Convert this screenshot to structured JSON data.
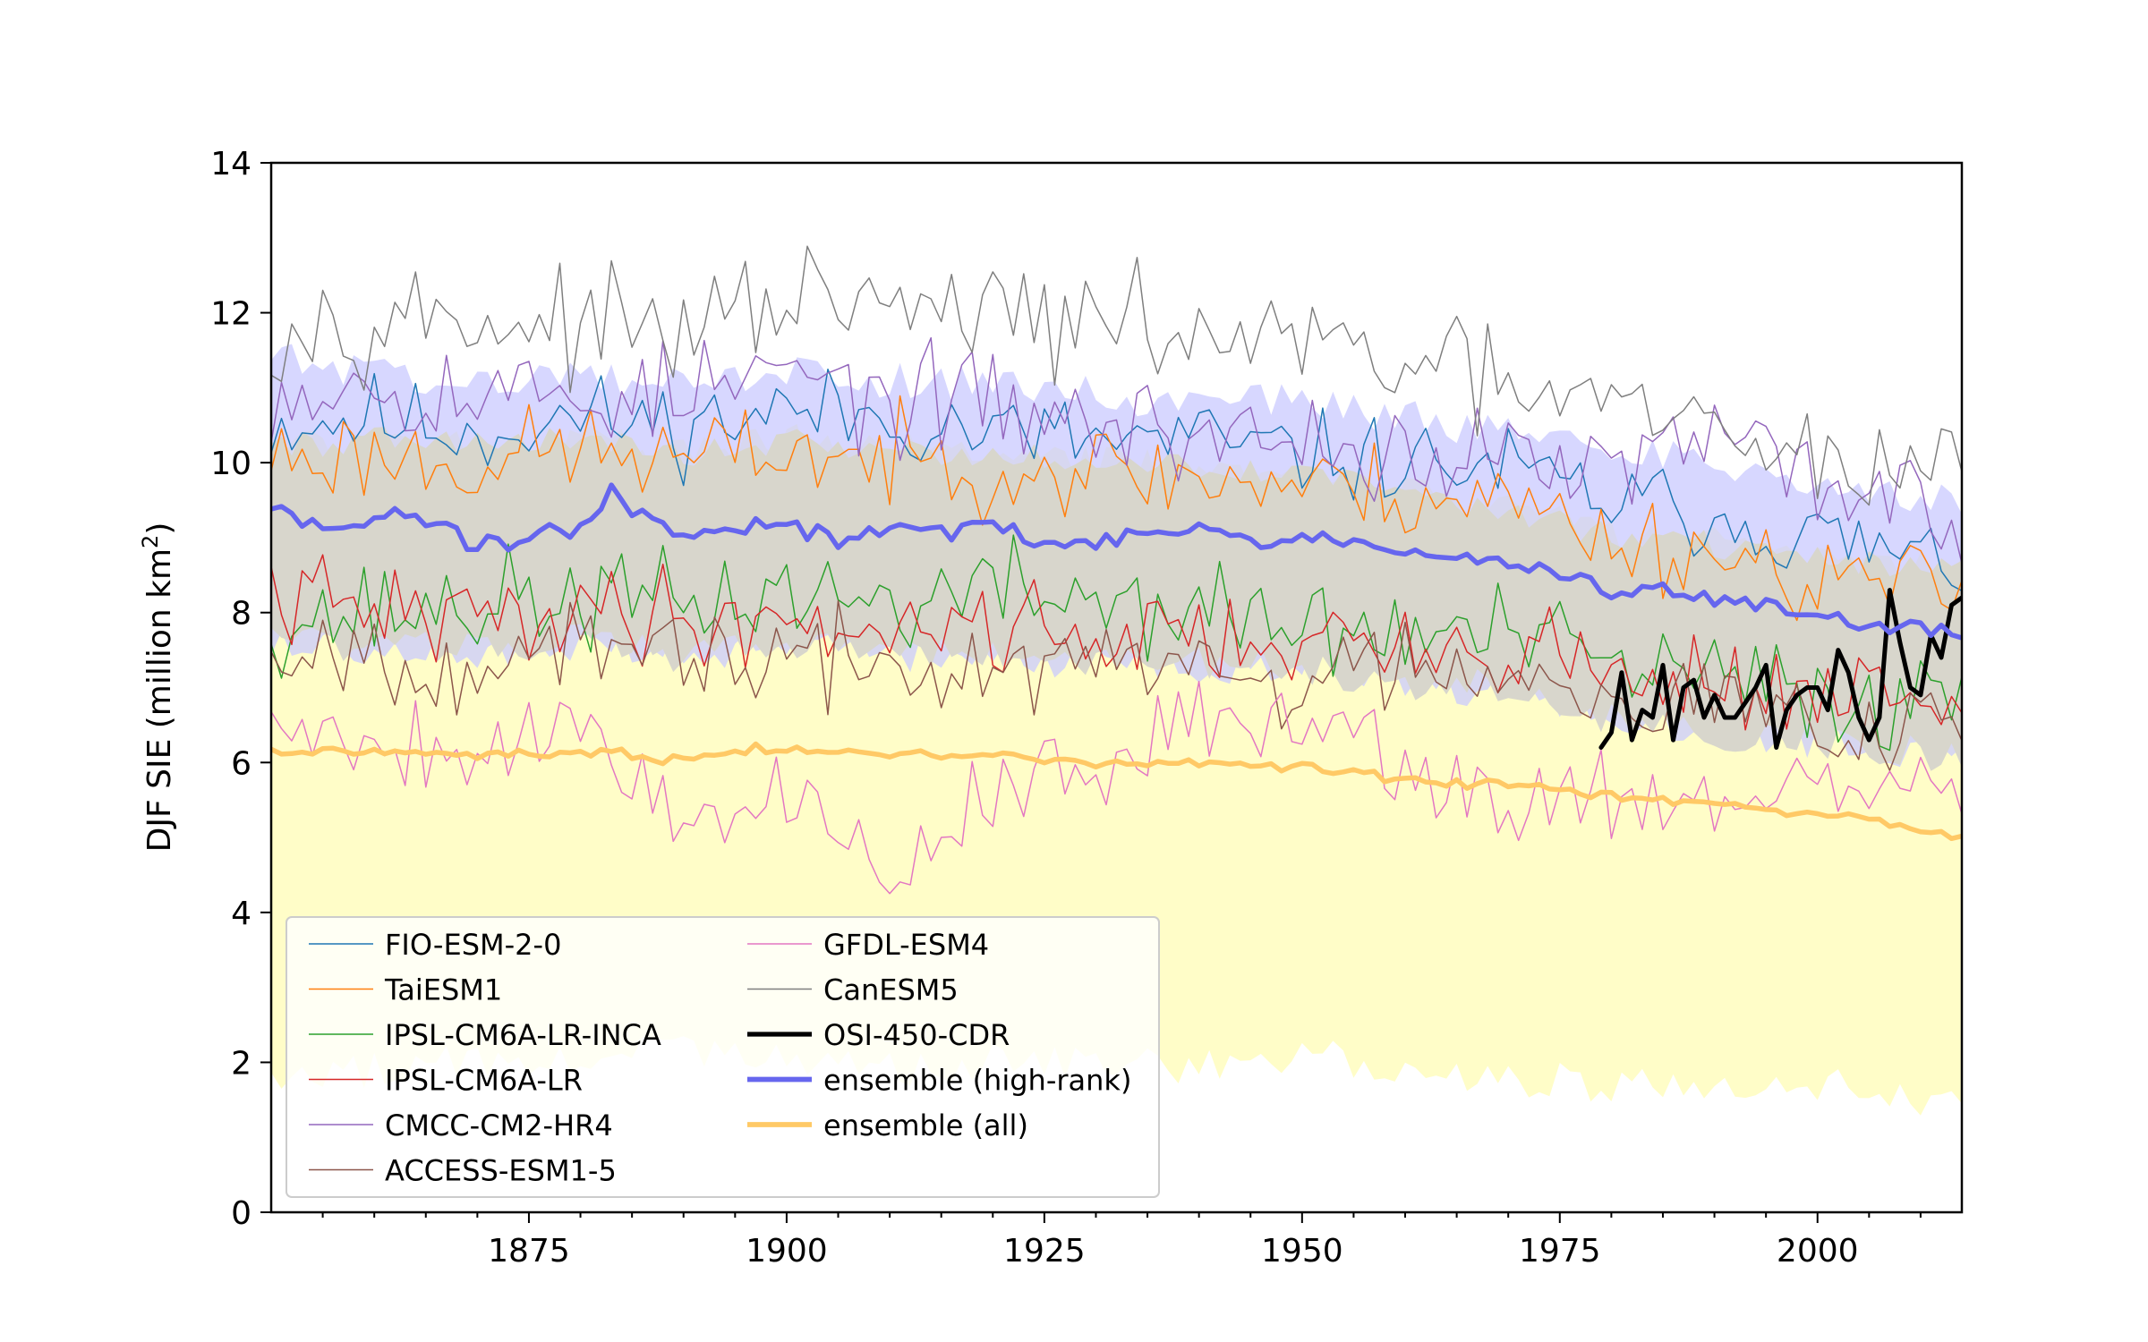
{
  "chart_data": {
    "type": "line",
    "title": "",
    "xlabel": "",
    "ylabel": "DJF SIE (million km",
    "ylabel_sup": "2",
    "ylabel_close": ")",
    "xlim": [
      1850,
      2014
    ],
    "ylim": [
      0,
      14
    ],
    "xticks": [
      1875,
      1900,
      1925,
      1950,
      1975,
      2000
    ],
    "yticks": [
      0,
      2,
      4,
      6,
      8,
      10,
      12,
      14
    ],
    "grid": false,
    "legend_position": "lower-left",
    "bands": [
      {
        "name": "ensemble (all) spread",
        "color": "#fffdc8",
        "x": [
          1850,
          1860,
          1870,
          1880,
          1890,
          1900,
          1910,
          1920,
          1930,
          1940,
          1950,
          1960,
          1970,
          1980,
          1990,
          2000,
          2010,
          2014
        ],
        "upper": [
          10.2,
          10.3,
          10.2,
          10.3,
          10.1,
          10.3,
          10.2,
          10.1,
          10.0,
          9.9,
          9.8,
          9.6,
          9.4,
          9.0,
          8.9,
          8.7,
          8.6,
          8.6
        ],
        "lower": [
          1.8,
          1.9,
          2.0,
          2.1,
          2.1,
          2.0,
          1.9,
          2.0,
          2.0,
          1.9,
          2.1,
          1.9,
          1.8,
          1.7,
          1.6,
          1.7,
          1.5,
          1.6
        ]
      },
      {
        "name": "ensemble (high-rank) spread",
        "color": "#c8c8ff",
        "x": [
          1850,
          1860,
          1870,
          1880,
          1890,
          1900,
          1910,
          1920,
          1930,
          1940,
          1950,
          1960,
          1970,
          1980,
          1990,
          2000,
          2010,
          2014
        ],
        "upper": [
          11.4,
          11.2,
          11.0,
          11.1,
          11.0,
          11.2,
          11.1,
          11.0,
          10.9,
          10.8,
          10.8,
          10.6,
          10.4,
          10.1,
          10.0,
          9.8,
          9.5,
          9.5
        ],
        "lower": [
          7.6,
          7.5,
          7.5,
          7.6,
          7.4,
          7.6,
          7.4,
          7.5,
          7.3,
          7.3,
          7.3,
          7.0,
          7.0,
          6.6,
          6.4,
          6.3,
          6.1,
          6.1
        ]
      }
    ],
    "series": [
      {
        "name": "FIO-ESM-2-0",
        "color": "#1f77b4",
        "width": 1.5,
        "x_start": 1850,
        "x_end": 2014,
        "key_x": [
          1850,
          1860,
          1870,
          1880,
          1890,
          1900,
          1910,
          1920,
          1930,
          1940,
          1950,
          1960,
          1970,
          1980,
          1990,
          2000,
          2010,
          2014
        ],
        "key_y": [
          10.5,
          10.6,
          10.4,
          10.6,
          10.5,
          10.7,
          10.6,
          10.4,
          10.3,
          10.3,
          10.1,
          10.0,
          9.9,
          9.5,
          9.3,
          9.0,
          8.7,
          8.6
        ],
        "amp": 0.55,
        "seed": 11
      },
      {
        "name": "TaiESM1",
        "color": "#ff7f0e",
        "width": 1.5,
        "x_start": 1850,
        "x_end": 2014,
        "key_x": [
          1850,
          1860,
          1870,
          1880,
          1890,
          1900,
          1910,
          1920,
          1930,
          1940,
          1950,
          1960,
          1970,
          1980,
          1990,
          2000,
          2010,
          2014
        ],
        "key_y": [
          10.1,
          10.1,
          10.0,
          10.2,
          10.0,
          10.2,
          10.0,
          10.0,
          9.9,
          9.8,
          9.7,
          9.6,
          9.5,
          9.0,
          8.8,
          8.5,
          8.3,
          8.3
        ],
        "amp": 0.6,
        "seed": 23
      },
      {
        "name": "IPSL-CM6A-LR-INCA",
        "color": "#2ca02c",
        "width": 1.5,
        "x_start": 1850,
        "x_end": 2014,
        "key_x": [
          1850,
          1860,
          1870,
          1880,
          1890,
          1900,
          1910,
          1920,
          1930,
          1940,
          1950,
          1960,
          1970,
          1980,
          1990,
          2000,
          2010,
          2014
        ],
        "key_y": [
          7.9,
          8.0,
          8.1,
          8.2,
          8.1,
          8.3,
          8.1,
          8.3,
          8.2,
          8.0,
          7.8,
          7.7,
          7.7,
          7.3,
          7.1,
          6.9,
          6.8,
          7.0
        ],
        "amp": 0.65,
        "seed": 37
      },
      {
        "name": "IPSL-CM6A-LR",
        "color": "#d62728",
        "width": 1.5,
        "x_start": 1850,
        "x_end": 2014,
        "key_x": [
          1850,
          1860,
          1870,
          1880,
          1890,
          1900,
          1910,
          1920,
          1930,
          1940,
          1950,
          1960,
          1970,
          1980,
          1990,
          2000,
          2010,
          2014
        ],
        "key_y": [
          8.2,
          8.0,
          7.9,
          8.1,
          7.9,
          7.9,
          7.8,
          7.9,
          7.7,
          7.7,
          7.6,
          7.4,
          7.6,
          7.2,
          7.1,
          6.9,
          6.8,
          6.8
        ],
        "amp": 0.6,
        "seed": 41
      },
      {
        "name": "CMCC-CM2-HR4",
        "color": "#9467bd",
        "width": 1.5,
        "x_start": 1850,
        "x_end": 2014,
        "key_x": [
          1850,
          1860,
          1870,
          1880,
          1890,
          1900,
          1910,
          1920,
          1930,
          1940,
          1950,
          1960,
          1970,
          1980,
          1990,
          2000,
          2010,
          2014
        ],
        "key_y": [
          11.0,
          11.1,
          10.9,
          10.9,
          10.9,
          11.2,
          10.8,
          10.8,
          10.5,
          10.4,
          10.3,
          10.1,
          10.0,
          9.9,
          10.3,
          9.8,
          9.5,
          9.0
        ],
        "amp": 0.65,
        "seed": 53
      },
      {
        "name": "ACCESS-ESM1-5",
        "color": "#8c564b",
        "width": 1.5,
        "x_start": 1850,
        "x_end": 2014,
        "key_x": [
          1850,
          1860,
          1870,
          1880,
          1890,
          1900,
          1910,
          1920,
          1930,
          1940,
          1950,
          1960,
          1970,
          1980,
          1990,
          2000,
          2010,
          2014
        ],
        "key_y": [
          7.6,
          7.5,
          7.3,
          7.4,
          7.5,
          7.3,
          7.3,
          7.2,
          7.3,
          7.3,
          7.0,
          7.4,
          7.3,
          7.0,
          6.8,
          6.6,
          6.6,
          6.6
        ],
        "amp": 0.6,
        "seed": 67
      },
      {
        "name": "GFDL-ESM4",
        "color": "#e377c2",
        "width": 1.5,
        "x_start": 1850,
        "x_end": 2014,
        "key_x": [
          1850,
          1860,
          1870,
          1880,
          1890,
          1900,
          1910,
          1920,
          1930,
          1940,
          1950,
          1960,
          1970,
          1980,
          1990,
          2000,
          2010,
          2014
        ],
        "key_y": [
          6.6,
          6.3,
          6.2,
          6.5,
          5.3,
          5.6,
          4.4,
          5.8,
          5.7,
          6.5,
          6.8,
          6.0,
          5.4,
          5.7,
          5.4,
          5.6,
          5.6,
          5.8
        ],
        "amp": 0.6,
        "seed": 79
      },
      {
        "name": "CanESM5",
        "color": "#7f7f7f",
        "width": 1.5,
        "x_start": 1850,
        "x_end": 2014,
        "key_x": [
          1850,
          1860,
          1870,
          1880,
          1890,
          1900,
          1910,
          1920,
          1930,
          1940,
          1950,
          1960,
          1970,
          1980,
          1990,
          2000,
          2010,
          2014
        ],
        "key_y": [
          11.8,
          12.0,
          11.9,
          11.8,
          11.7,
          12.2,
          12.0,
          12.0,
          11.8,
          11.7,
          11.6,
          11.3,
          11.0,
          10.7,
          10.4,
          10.0,
          10.0,
          10.0
        ],
        "amp": 0.65,
        "seed": 97
      },
      {
        "name": "OSI-450-CDR",
        "color": "#000000",
        "width": 5,
        "x": [
          1979,
          1980,
          1981,
          1982,
          1983,
          1984,
          1985,
          1986,
          1987,
          1988,
          1989,
          1990,
          1991,
          1992,
          1993,
          1994,
          1995,
          1996,
          1997,
          1998,
          1999,
          2000,
          2001,
          2002,
          2003,
          2004,
          2005,
          2006,
          2007,
          2008,
          2009,
          2010,
          2011,
          2012,
          2013,
          2014
        ],
        "y": [
          6.2,
          6.4,
          7.2,
          6.3,
          6.7,
          6.6,
          7.3,
          6.3,
          7.0,
          7.1,
          6.6,
          6.9,
          6.6,
          6.6,
          6.8,
          7.0,
          7.3,
          6.2,
          6.7,
          6.9,
          7.0,
          7.0,
          6.7,
          7.5,
          7.2,
          6.6,
          6.3,
          6.6,
          8.3,
          7.6,
          7.0,
          6.9,
          7.7,
          7.4,
          8.1,
          8.2
        ]
      },
      {
        "name": "ensemble (high-rank)",
        "color": "#6666ee",
        "width": 5.5,
        "x_start": 1850,
        "x_end": 2014,
        "key_x": [
          1850,
          1855,
          1860,
          1865,
          1870,
          1875,
          1880,
          1883,
          1890,
          1895,
          1900,
          1905,
          1910,
          1915,
          1920,
          1925,
          1930,
          1935,
          1940,
          1945,
          1950,
          1955,
          1960,
          1965,
          1970,
          1975,
          1980,
          1985,
          1990,
          1995,
          2000,
          2005,
          2010,
          2014
        ],
        "key_y": [
          9.45,
          9.1,
          9.3,
          9.25,
          8.9,
          9.0,
          9.1,
          9.6,
          9.0,
          9.1,
          9.2,
          9.0,
          9.1,
          9.1,
          9.2,
          8.9,
          9.0,
          9.05,
          9.1,
          8.9,
          9.0,
          8.9,
          8.8,
          8.7,
          8.7,
          8.5,
          8.3,
          8.25,
          8.2,
          8.15,
          7.95,
          7.8,
          7.8,
          7.7
        ],
        "amp": 0.12,
        "seed": 131
      },
      {
        "name": "ensemble (all)",
        "color": "#ffc966",
        "width": 5.5,
        "x_start": 1850,
        "x_end": 2014,
        "key_x": [
          1850,
          1860,
          1870,
          1880,
          1890,
          1900,
          1910,
          1920,
          1930,
          1940,
          1950,
          1960,
          1970,
          1980,
          1990,
          2000,
          2010,
          2014
        ],
        "key_y": [
          6.15,
          6.15,
          6.1,
          6.15,
          6.05,
          6.2,
          6.1,
          6.1,
          6.0,
          6.0,
          5.95,
          5.75,
          5.7,
          5.55,
          5.45,
          5.3,
          5.1,
          5.0
        ],
        "amp": 0.06,
        "seed": 149
      }
    ]
  }
}
